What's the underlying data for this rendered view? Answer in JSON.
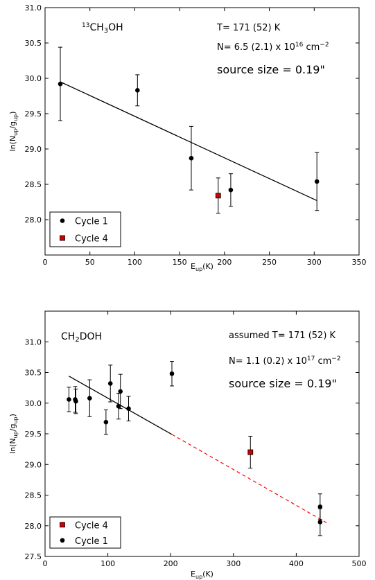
{
  "chart_data": [
    {
      "type": "scatter",
      "molecule": {
        "pre": "13",
        "parts": [
          "CH",
          "3",
          "OH"
        ]
      },
      "xlabel": {
        "main": "E",
        "sub": "up",
        "rest": "(K)"
      },
      "ylabel": {
        "main": "ln(N",
        "sub1": "up",
        "mid": "/g",
        "sub2": "up",
        "end": ")"
      },
      "xlim": [
        0,
        350
      ],
      "ylim": [
        27.5,
        31.0
      ],
      "xticks": [
        0,
        50,
        100,
        150,
        200,
        250,
        300,
        350
      ],
      "yticks": [
        28.0,
        28.5,
        29.0,
        29.5,
        30.0,
        30.5,
        31.0
      ],
      "annotations": {
        "temperature": "T= 171 (52) K",
        "density": {
          "pre": "N= 6.5 (2.1) x 10",
          "exp": "16",
          "mid": " cm",
          "exp2": "−2"
        },
        "source_size": "source size = 0.19\""
      },
      "series": [
        {
          "name": "Cycle 1",
          "marker": "circle",
          "color": "#000000",
          "points": [
            {
              "x": 17,
              "y": 29.92,
              "err": 0.52
            },
            {
              "x": 103,
              "y": 29.83,
              "err": 0.22
            },
            {
              "x": 163,
              "y": 28.87,
              "err": 0.45
            },
            {
              "x": 207,
              "y": 28.42,
              "err": 0.23
            },
            {
              "x": 303,
              "y": 28.54,
              "err": 0.41
            }
          ]
        },
        {
          "name": "Cycle 4",
          "marker": "square",
          "color": "#cc0000",
          "points": [
            {
              "x": 193,
              "y": 28.34,
              "err": 0.25
            }
          ]
        }
      ],
      "fits": [
        {
          "x": [
            17,
            303
          ],
          "y": [
            29.95,
            28.27
          ],
          "color": "#000000",
          "dashed": false
        }
      ],
      "legend": {
        "position": "bottom-left",
        "order": [
          "Cycle 1",
          "Cycle 4"
        ]
      }
    },
    {
      "type": "scatter",
      "molecule": {
        "pre": "",
        "parts": [
          "CH",
          "2",
          "DOH"
        ]
      },
      "xlabel": {
        "main": "E",
        "sub": "up",
        "rest": "(K)"
      },
      "ylabel": {
        "main": "ln(N",
        "sub1": "up",
        "mid": "/g",
        "sub2": "up",
        "end": ")"
      },
      "xlim": [
        0,
        500
      ],
      "ylim": [
        27.5,
        31.5
      ],
      "xticks": [
        0,
        100,
        200,
        300,
        400,
        500
      ],
      "yticks": [
        27.5,
        28.0,
        28.5,
        29.0,
        29.5,
        30.0,
        30.5,
        31.0
      ],
      "annotations": {
        "temperature": "assumed T= 171 (52) K",
        "density": {
          "pre": "N= 1.1 (0.2) x 10",
          "exp": "17",
          "mid": " cm",
          "exp2": "−2"
        },
        "source_size": "source size = 0.19\""
      },
      "series": [
        {
          "name": "Cycle 4",
          "marker": "square",
          "color": "#cc0000",
          "points": [
            {
              "x": 327,
              "y": 29.2,
              "err": 0.26
            }
          ]
        },
        {
          "name": "Cycle 1",
          "marker": "circle",
          "color": "#000000",
          "points": [
            {
              "x": 38,
              "y": 30.06,
              "err": 0.2
            },
            {
              "x": 48,
              "y": 30.06,
              "err": 0.21
            },
            {
              "x": 49,
              "y": 30.03,
              "err": 0.2
            },
            {
              "x": 71,
              "y": 30.08,
              "err": 0.3
            },
            {
              "x": 97,
              "y": 29.69,
              "err": 0.2
            },
            {
              "x": 104,
              "y": 30.32,
              "err": 0.3
            },
            {
              "x": 117,
              "y": 29.95,
              "err": 0.21
            },
            {
              "x": 120,
              "y": 30.19,
              "err": 0.28
            },
            {
              "x": 133,
              "y": 29.91,
              "err": 0.2
            },
            {
              "x": 202,
              "y": 30.48,
              "err": 0.2
            },
            {
              "x": 438,
              "y": 28.31,
              "err": 0.21
            },
            {
              "x": 438,
              "y": 28.06,
              "err": 0.22
            }
          ]
        }
      ],
      "fits": [
        {
          "x": [
            38,
            202
          ],
          "y": [
            30.44,
            29.49
          ],
          "color": "#000000",
          "dashed": false
        },
        {
          "x": [
            202,
            450
          ],
          "y": [
            29.49,
            28.04
          ],
          "color": "#ff0000",
          "dashed": true
        }
      ],
      "legend": {
        "position": "bottom-left",
        "order": [
          "Cycle 4",
          "Cycle 1"
        ]
      }
    }
  ]
}
